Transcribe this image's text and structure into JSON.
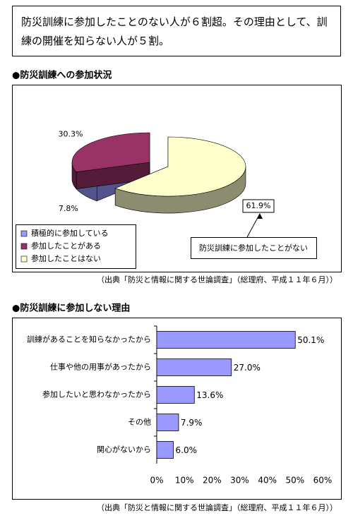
{
  "headline": "防災訓練に参加したことのない人が６割超。その理由として、訓練の開催を知らない人が５割。",
  "chart_data": [
    {
      "type": "pie",
      "title": "●防災訓練への参加状況",
      "categories": [
        "積極的に参加している",
        "参加したことがある",
        "参加したことはない"
      ],
      "values": [
        7.8,
        30.3,
        61.9
      ],
      "value_labels": [
        "7.8%",
        "30.3%",
        "61.9%"
      ],
      "colors": [
        "#9999ff",
        "#993366",
        "#ffffcc"
      ],
      "annotation": "防災訓練に参加したことがない",
      "source": "（出典「防災と情報に関する世論調査」（総理府、平成１１年６月））"
    },
    {
      "type": "bar",
      "title": "●防災訓練に参加しない理由",
      "categories": [
        "訓練があることを知らなかったから",
        "仕事や他の用事があったから",
        "参加したいと思わなかったから",
        "その他",
        "関心がないから"
      ],
      "values": [
        50.1,
        27.0,
        13.6,
        7.9,
        6.0
      ],
      "value_labels": [
        "50.1%",
        "27.0%",
        "13.6%",
        "7.9%",
        "6.0%"
      ],
      "color": "#9999ff",
      "xlim": [
        0,
        60
      ],
      "xticks": [
        {
          "value": 0,
          "label": "0%"
        },
        {
          "value": 10,
          "label": "10%"
        },
        {
          "value": 20,
          "label": "20%"
        },
        {
          "value": 30,
          "label": "30%"
        },
        {
          "value": 40,
          "label": "40%"
        },
        {
          "value": 50,
          "label": "50%"
        },
        {
          "value": 60,
          "label": "60%"
        }
      ],
      "source": "（出典「防災と情報に関する世論調査」（総理府、平成１１年６月））"
    }
  ]
}
